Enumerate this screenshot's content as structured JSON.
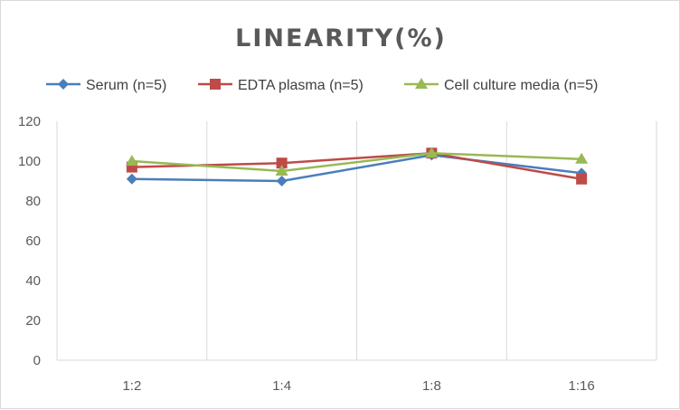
{
  "chart_data": {
    "type": "line",
    "title": "LINEARITY(%)",
    "xlabel": "",
    "ylabel": "",
    "categories": [
      "1:2",
      "1:4",
      "1:8",
      "1:16"
    ],
    "ylim": [
      0,
      120
    ],
    "yticks": [
      0,
      20,
      40,
      60,
      80,
      100,
      120
    ],
    "grid": "vertical",
    "legend_position": "top",
    "series": [
      {
        "name": "Serum (n=5)",
        "values": [
          91,
          90,
          103,
          94
        ],
        "color": "#4a7ebb",
        "marker": "diamond"
      },
      {
        "name": "EDTA plasma (n=5)",
        "values": [
          97,
          99,
          104,
          91
        ],
        "color": "#be4b48",
        "marker": "square"
      },
      {
        "name": "Cell culture media (n=5)",
        "values": [
          100,
          95,
          104,
          101
        ],
        "color": "#98b954",
        "marker": "triangle"
      }
    ]
  }
}
